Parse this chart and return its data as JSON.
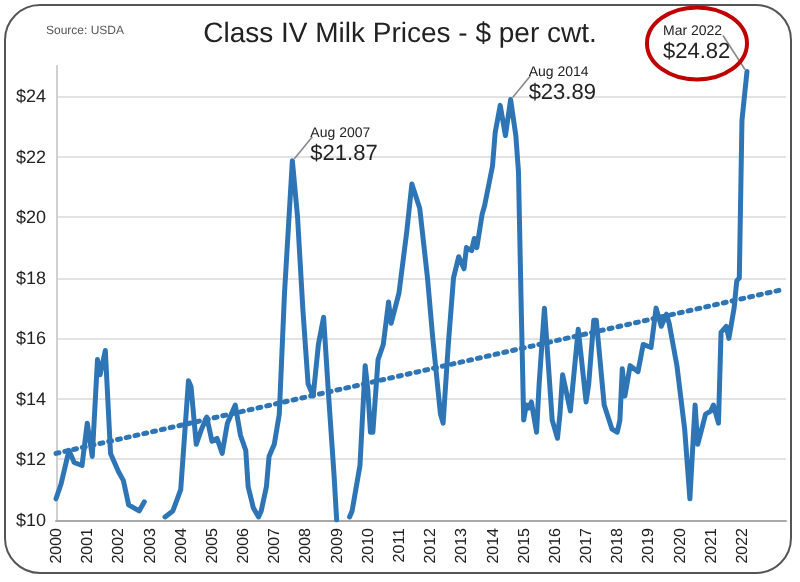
{
  "chart_data": {
    "type": "line",
    "title": "Class IV Milk Prices - $ per cwt.",
    "annotations": [
      "Source: USDA",
      {
        "text": "Aug 2007",
        "x": "2007-08",
        "y": 21.87
      },
      {
        "text": "$21.87",
        "x": "2007-08",
        "y": 21.87
      },
      {
        "text": "Aug 2014",
        "x": "2014-08",
        "y": 23.89
      },
      {
        "text": "$23.89",
        "x": "2014-08",
        "y": 23.89
      },
      {
        "text": "Mar 2022",
        "x": "2022-03",
        "y": 24.82
      },
      {
        "text": "$24.82",
        "x": "2022-03",
        "y": 24.82
      }
    ],
    "xlim": [
      "2000-01",
      "2023-06"
    ],
    "xticks": [
      "2000",
      "2001",
      "2002",
      "2003",
      "2004",
      "2005",
      "2006",
      "2007",
      "2008",
      "2009",
      "2010",
      "2011",
      "2012",
      "2013",
      "2014",
      "2015",
      "2016",
      "2017",
      "2018",
      "2019",
      "2020",
      "2021",
      "2022"
    ],
    "ylim": [
      10,
      25
    ],
    "yticks": [
      {
        "value": 10,
        "label": "$10"
      },
      {
        "value": 12,
        "label": "$12"
      },
      {
        "value": 14,
        "label": "$14"
      },
      {
        "value": 16,
        "label": "$16"
      },
      {
        "value": 18,
        "label": "$18"
      },
      {
        "value": 20,
        "label": "$20"
      },
      {
        "value": 22,
        "label": "$22"
      },
      {
        "value": 24,
        "label": "$24"
      }
    ],
    "grid": "y",
    "marker": "none",
    "series": [
      {
        "color": "#2e75b6",
        "line_style": "solid",
        "x": [
          "2000-01",
          "2000-03",
          "2000-06",
          "2000-08",
          "2000-11",
          "2001-01",
          "2001-03",
          "2001-05",
          "2001-06",
          "2001-08",
          "2001-10",
          "2002-01",
          "2002-03",
          "2002-05",
          "2002-09",
          "2002-11",
          "2003-01",
          "2003-07",
          "2003-10",
          "2004-01",
          "2004-04",
          "2004-05",
          "2004-07",
          "2004-09",
          "2004-11",
          "2005-01",
          "2005-03",
          "2005-05",
          "2005-07",
          "2005-10",
          "2005-12",
          "2006-02",
          "2006-03",
          "2006-05",
          "2006-07",
          "2006-08",
          "2006-10",
          "2006-11",
          "2007-01",
          "2007-03",
          "2007-05",
          "2007-08",
          "2007-10",
          "2007-12",
          "2008-02",
          "2008-04",
          "2008-06",
          "2008-08",
          "2008-10",
          "2008-12",
          "2009-01",
          "2009-03",
          "2009-06",
          "2009-07",
          "2009-10",
          "2009-12",
          "2010-01",
          "2010-02",
          "2010-03",
          "2010-05",
          "2010-07",
          "2010-09",
          "2010-10",
          "2011-01",
          "2011-04",
          "2011-06",
          "2011-09",
          "2011-12",
          "2012-02",
          "2012-05",
          "2012-06",
          "2012-08",
          "2012-10",
          "2012-12",
          "2013-02",
          "2013-03",
          "2013-05",
          "2013-06",
          "2013-07",
          "2013-09",
          "2013-10",
          "2014-01",
          "2014-02",
          "2014-04",
          "2014-06",
          "2014-08",
          "2014-10",
          "2014-11",
          "2014-12",
          "2015-01",
          "2015-02",
          "2015-03",
          "2015-04",
          "2015-06",
          "2015-07",
          "2015-09",
          "2015-12",
          "2016-02",
          "2016-03",
          "2016-04",
          "2016-06",
          "2016-07",
          "2016-10",
          "2017-01",
          "2017-02",
          "2017-04",
          "2017-05",
          "2017-08",
          "2017-11",
          "2018-01",
          "2018-02",
          "2018-03",
          "2018-04",
          "2018-06",
          "2018-09",
          "2018-11",
          "2019-02",
          "2019-04",
          "2019-06",
          "2019-08",
          "2019-09",
          "2019-12",
          "2020-03",
          "2020-05",
          "2020-07",
          "2020-08",
          "2020-11",
          "2021-01",
          "2021-02",
          "2021-04",
          "2021-05",
          "2021-07",
          "2021-08",
          "2021-10",
          "2021-11",
          "2021-12",
          "2022-01",
          "2022-03"
        ],
        "values": [
          10.7,
          11.2,
          12.3,
          11.9,
          11.8,
          13.2,
          12.1,
          15.3,
          14.8,
          15.6,
          12.2,
          11.6,
          11.3,
          10.5,
          10.3,
          10.6,
          null,
          10.1,
          10.3,
          11.0,
          14.6,
          14.4,
          12.5,
          13.0,
          13.4,
          12.6,
          12.7,
          12.2,
          13.2,
          13.8,
          12.8,
          12.3,
          11.1,
          10.4,
          10.1,
          10.3,
          11.1,
          12.1,
          12.5,
          13.5,
          17.5,
          21.87,
          20.0,
          17.0,
          14.5,
          14.1,
          15.8,
          16.7,
          14.0,
          11.5,
          10.0,
          null,
          10.1,
          10.3,
          11.8,
          15.1,
          14.3,
          12.9,
          12.9,
          15.3,
          15.8,
          17.2,
          16.5,
          17.5,
          19.5,
          21.1,
          20.3,
          18.0,
          16.0,
          13.5,
          13.2,
          15.8,
          18.0,
          18.7,
          18.3,
          19.0,
          18.9,
          19.3,
          19.0,
          20.1,
          20.4,
          21.7,
          22.8,
          23.7,
          22.7,
          23.89,
          22.7,
          21.5,
          17.3,
          13.3,
          13.8,
          13.7,
          13.9,
          12.9,
          14.5,
          17.0,
          13.3,
          12.7,
          13.5,
          14.8,
          14.0,
          13.6,
          16.3,
          13.9,
          14.5,
          16.6,
          16.6,
          13.8,
          13.0,
          12.9,
          13.3,
          15.0,
          14.1,
          15.1,
          14.9,
          15.8,
          15.7,
          17.0,
          16.4,
          16.8,
          16.5,
          15.1,
          13.0,
          10.7,
          13.8,
          12.5,
          13.5,
          13.6,
          13.8,
          13.2,
          16.2,
          16.4,
          16.0,
          17.0,
          17.9,
          18.0,
          23.2,
          24.82
        ]
      },
      {
        "color": "#2e75b6",
        "line_style": "dotted",
        "x": [
          "2000-01",
          "2023-04"
        ],
        "values": [
          12.2,
          17.6
        ]
      }
    ]
  }
}
